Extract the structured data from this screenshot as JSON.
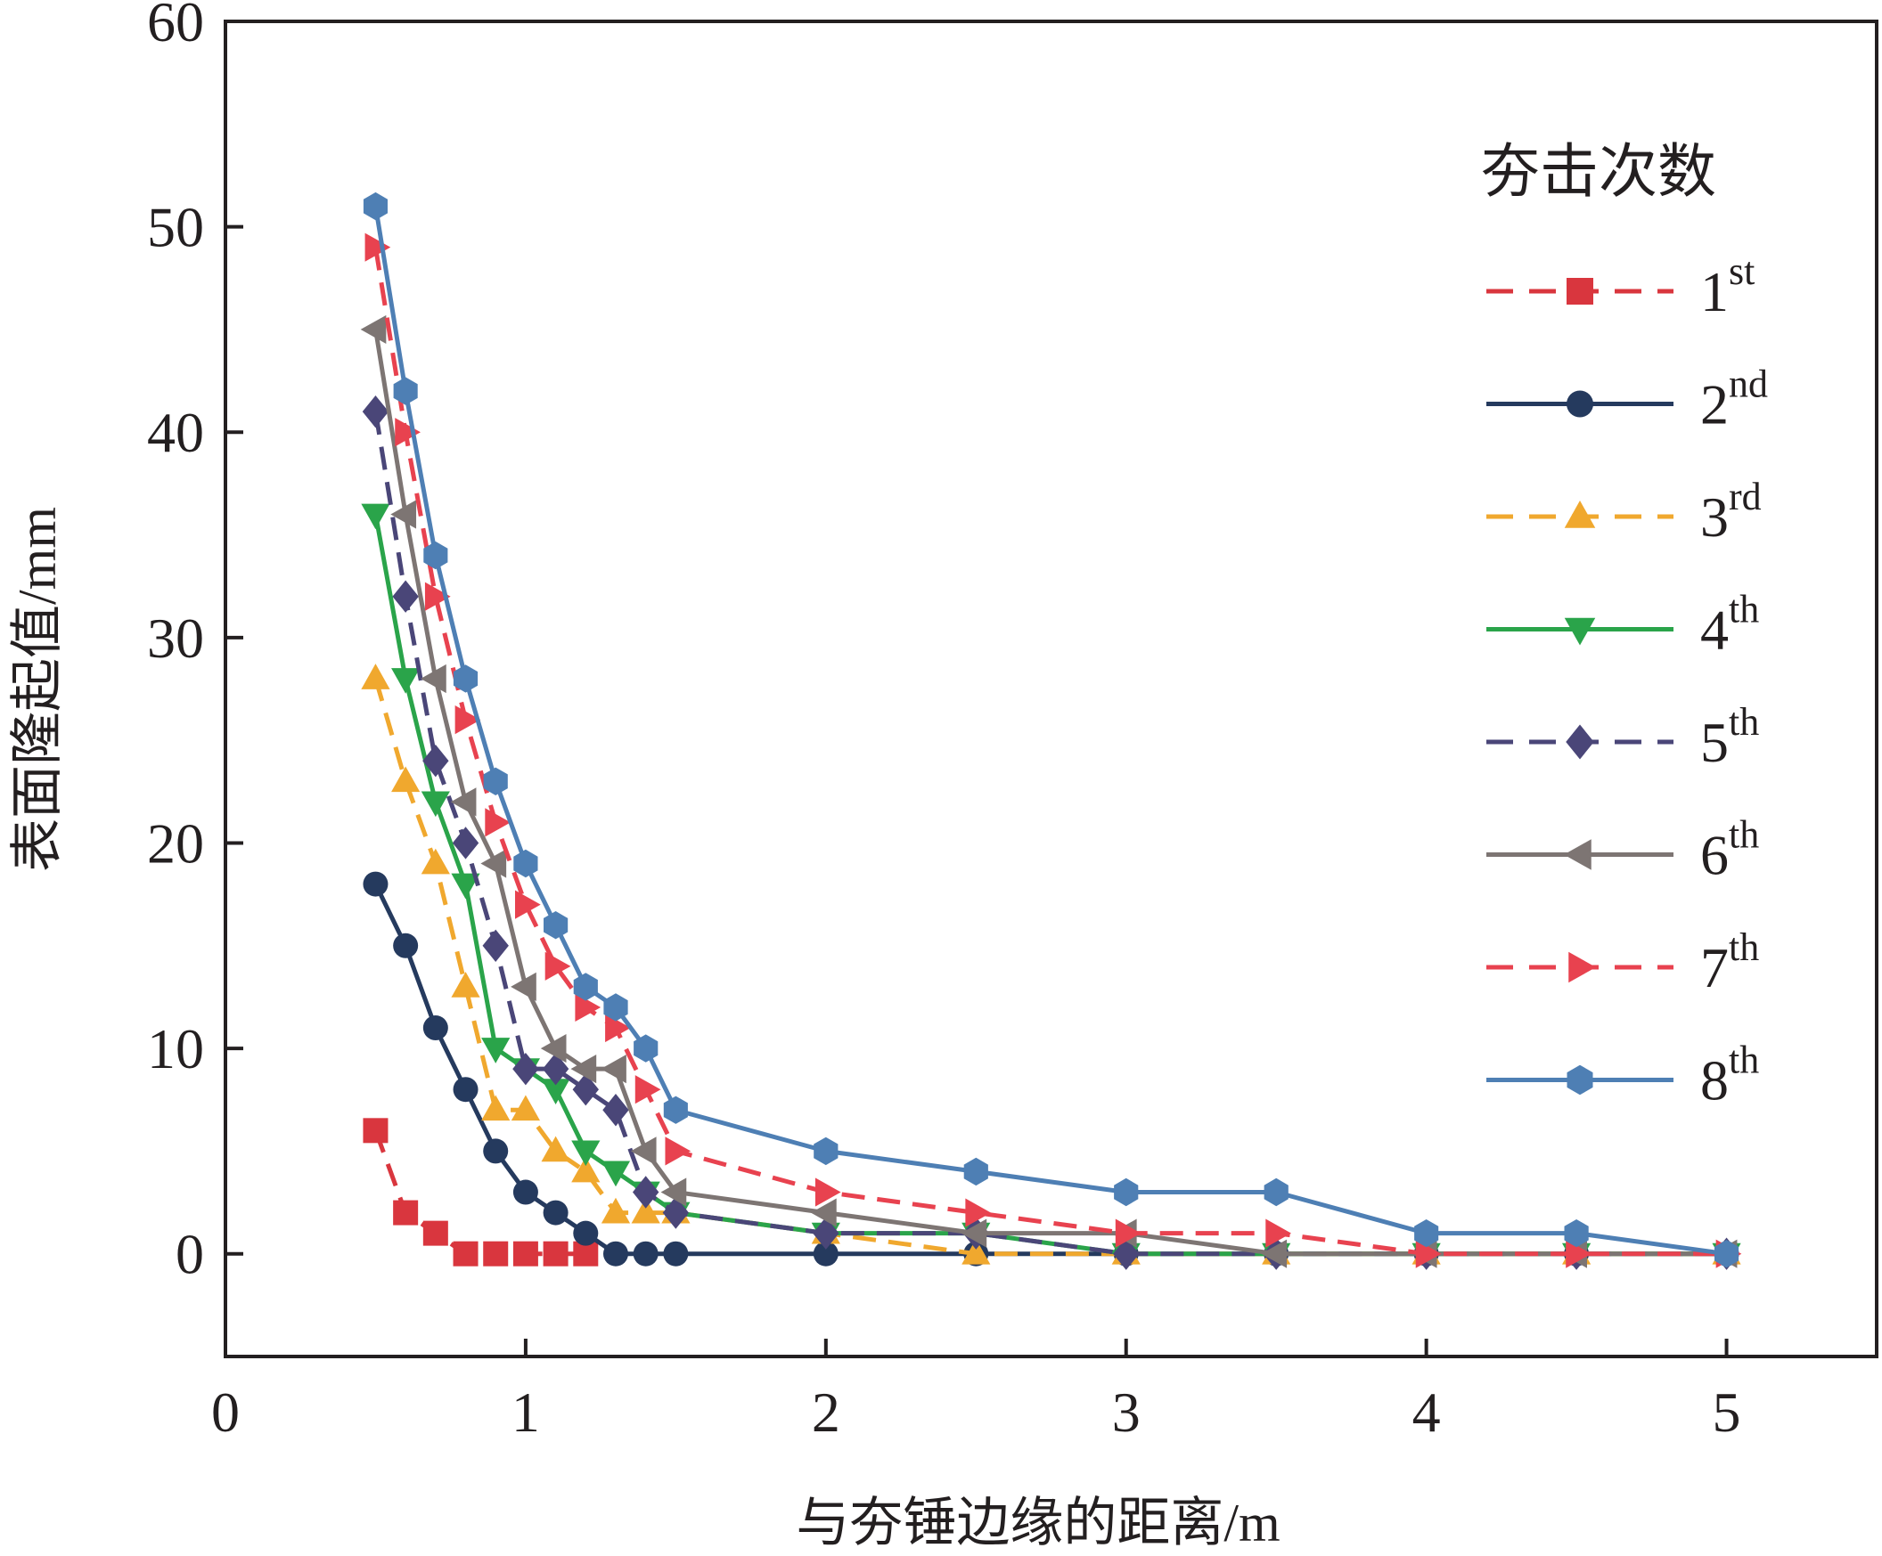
{
  "chart_data": {
    "type": "line",
    "xlabel": "与夯锤边缘的距离/m",
    "ylabel": "表面隆起值/mm",
    "xlim": [
      0,
      5.5
    ],
    "ylim": [
      -5,
      60
    ],
    "xticks": [
      0,
      1,
      2,
      3,
      4,
      5
    ],
    "yticks": [
      0,
      10,
      20,
      30,
      40,
      50,
      60
    ],
    "grid": false,
    "legend": {
      "title": "夯击次数",
      "placement": "top-right"
    },
    "series": [
      {
        "label_num": "1",
        "label_sup": "st",
        "color": "#d9363e",
        "dash": true,
        "marker": "square",
        "x": [
          0.5,
          0.6,
          0.7,
          0.8,
          0.9,
          1.0,
          1.1,
          1.2
        ],
        "y": [
          6,
          2,
          1,
          0,
          0,
          0,
          0,
          0
        ]
      },
      {
        "label_num": "2",
        "label_sup": "nd",
        "color": "#253a5e",
        "dash": false,
        "marker": "circle",
        "x": [
          0.5,
          0.6,
          0.7,
          0.8,
          0.9,
          1.0,
          1.1,
          1.2,
          1.3,
          1.4,
          1.5,
          2.0,
          2.5,
          3.0,
          3.5,
          4.0,
          4.5,
          5.0
        ],
        "y": [
          18,
          15,
          11,
          8,
          5,
          3,
          2,
          1,
          0,
          0,
          0,
          0,
          0,
          0,
          0,
          0,
          0,
          0
        ]
      },
      {
        "label_num": "3",
        "label_sup": "rd",
        "color": "#f0a82e",
        "dash": true,
        "marker": "triangle-up",
        "x": [
          0.5,
          0.6,
          0.7,
          0.8,
          0.9,
          1.0,
          1.1,
          1.2,
          1.3,
          1.4,
          1.5,
          2.0,
          2.5,
          3.0,
          3.5,
          4.0,
          4.5,
          5.0
        ],
        "y": [
          28,
          23,
          19,
          13,
          7,
          7,
          5,
          4,
          2,
          2,
          2,
          1,
          0,
          0,
          0,
          0,
          0,
          0
        ]
      },
      {
        "label_num": "4",
        "label_sup": "th",
        "color": "#2aa44a",
        "dash": false,
        "marker": "triangle-down",
        "x": [
          0.5,
          0.6,
          0.7,
          0.8,
          0.9,
          1.0,
          1.1,
          1.2,
          1.3,
          1.4,
          1.5,
          2.0,
          2.5,
          3.0,
          3.5,
          4.0,
          4.5,
          5.0
        ],
        "y": [
          36,
          28,
          22,
          18,
          10,
          9,
          8,
          5,
          4,
          3,
          2,
          1,
          1,
          0,
          0,
          0,
          0,
          0
        ]
      },
      {
        "label_num": "5",
        "label_sup": "th",
        "color": "#4a4678",
        "dash": true,
        "marker": "diamond",
        "x": [
          0.5,
          0.6,
          0.7,
          0.8,
          0.9,
          1.0,
          1.1,
          1.2,
          1.3,
          1.4,
          1.5,
          2.0,
          2.5,
          3.0,
          3.5,
          4.0,
          4.5,
          5.0
        ],
        "y": [
          41,
          32,
          24,
          20,
          15,
          9,
          9,
          8,
          7,
          3,
          2,
          1,
          1,
          0,
          0,
          0,
          0,
          0
        ]
      },
      {
        "label_num": "6",
        "label_sup": "th",
        "color": "#7d7573",
        "dash": false,
        "marker": "triangle-left",
        "x": [
          0.5,
          0.6,
          0.7,
          0.8,
          0.9,
          1.0,
          1.1,
          1.2,
          1.3,
          1.4,
          1.5,
          2.0,
          2.5,
          3.0,
          3.5,
          4.0,
          4.5,
          5.0
        ],
        "y": [
          45,
          36,
          28,
          22,
          19,
          13,
          10,
          9,
          9,
          5,
          3,
          2,
          1,
          1,
          0,
          0,
          0,
          0
        ]
      },
      {
        "label_num": "7",
        "label_sup": "th",
        "color": "#e8424f",
        "dash": true,
        "marker": "triangle-right",
        "x": [
          0.5,
          0.6,
          0.7,
          0.8,
          0.9,
          1.0,
          1.1,
          1.2,
          1.3,
          1.4,
          1.5,
          2.0,
          2.5,
          3.0,
          3.5,
          4.0,
          4.5,
          5.0
        ],
        "y": [
          49,
          40,
          32,
          26,
          21,
          17,
          14,
          12,
          11,
          8,
          5,
          3,
          2,
          1,
          1,
          0,
          0,
          0
        ]
      },
      {
        "label_num": "8",
        "label_sup": "th",
        "color": "#4e7fb4",
        "dash": false,
        "marker": "hexagon",
        "x": [
          0.5,
          0.6,
          0.7,
          0.8,
          0.9,
          1.0,
          1.1,
          1.2,
          1.3,
          1.4,
          1.5,
          2.0,
          2.5,
          3.0,
          3.5,
          4.0,
          4.5,
          5.0
        ],
        "y": [
          51,
          42,
          34,
          28,
          23,
          19,
          16,
          13,
          12,
          10,
          7,
          5,
          4,
          3,
          3,
          1,
          1,
          0
        ]
      }
    ]
  }
}
